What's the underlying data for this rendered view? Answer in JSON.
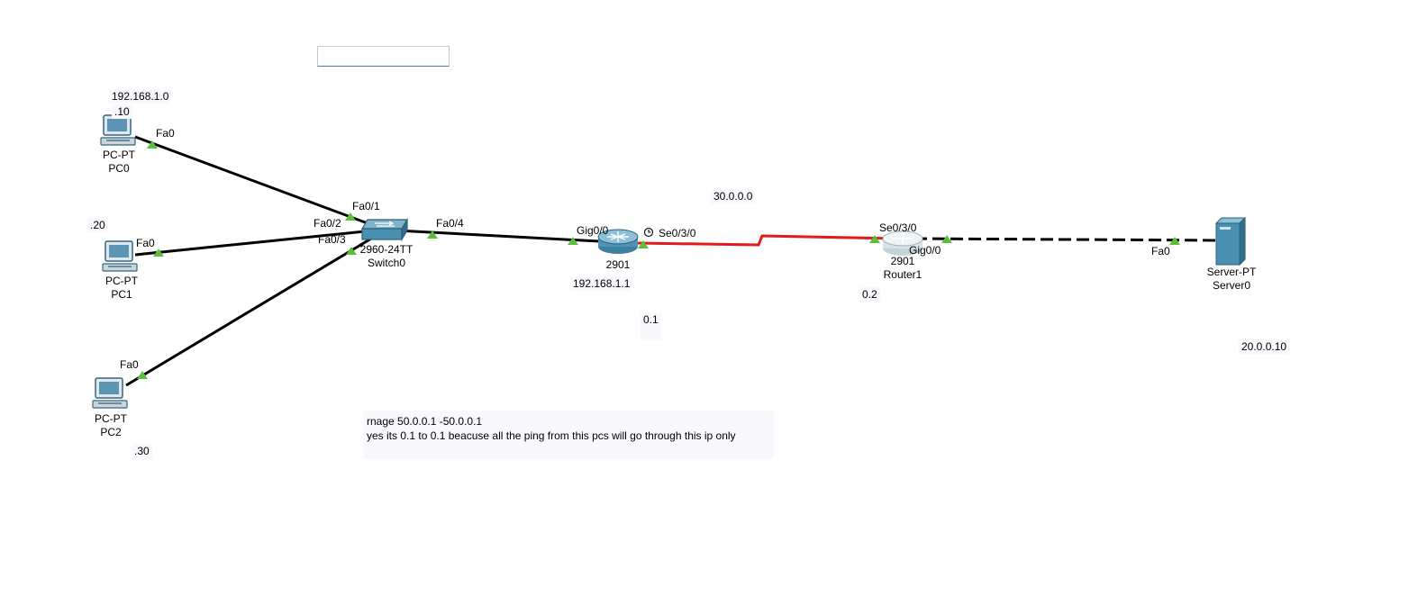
{
  "devices": {
    "pc0": {
      "type": "PC-PT",
      "name": "PC0",
      "icon": "pc-icon"
    },
    "pc1": {
      "type": "PC-PT",
      "name": "PC1",
      "icon": "pc-icon"
    },
    "pc2": {
      "type": "PC-PT",
      "name": "PC2",
      "icon": "pc-icon"
    },
    "switch0": {
      "type": "2960-24TT",
      "name": "Switch0",
      "icon": "switch-icon"
    },
    "router0": {
      "type": "2901",
      "name": "",
      "icon": "router-icon"
    },
    "router1": {
      "type": "2901",
      "name": "Router1",
      "icon": "router-icon"
    },
    "server0": {
      "type": "Server-PT",
      "name": "Server0",
      "icon": "server-icon"
    }
  },
  "ports": {
    "pc0_fa0": "Fa0",
    "pc1_fa0": "Fa0",
    "pc2_fa0": "Fa0",
    "sw_fa01": "Fa0/1",
    "sw_fa02": "Fa0/2",
    "sw_fa03": "Fa0/3",
    "sw_fa04": "Fa0/4",
    "r0_gig00": "Gig0/0",
    "r0_se030": "Se0/3/0",
    "r1_se030": "Se0/3/0",
    "r1_gig00": "Gig0/0",
    "srv_fa0": "Fa0"
  },
  "notes": {
    "net_lan": "192.168.1.0",
    "pc0_ip": ".10",
    "pc1_ip": ".20",
    "pc2_ip": ".30",
    "net_wan": "30.0.0.0",
    "r0_lan_ip": "192.168.1.1",
    "r0_wan_ip": "0.1",
    "r1_wan_ip": "0.2",
    "server_ip": "20.0.0.10",
    "big_note_line1": "rnage 50.0.0.1 -50.0.0.1",
    "big_note_line2": "yes its 0.1 to 0.1 beacuse all the ping from this pcs will go through this ip only"
  },
  "colors": {
    "ethernet": "#000000",
    "serial": "#e11a1a",
    "port_up": "#5cbf3c",
    "device": "#4a90b0"
  }
}
